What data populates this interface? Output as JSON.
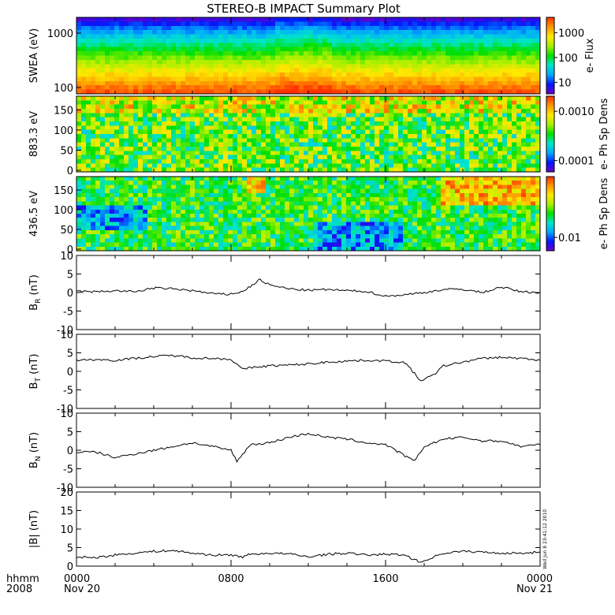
{
  "title": "STEREO-B IMPACT Summary Plot",
  "time_axis": {
    "corner_label_1": "hhmm",
    "corner_label_2": "2008",
    "ticks": [
      {
        "hhmm": "0000",
        "date": "Nov 20"
      },
      {
        "hhmm": "0800",
        "date": ""
      },
      {
        "hhmm": "1600",
        "date": ""
      },
      {
        "hhmm": "0000",
        "date": "Nov 21"
      }
    ]
  },
  "stamp": "Wed Jun  8 23:41:12 2010",
  "colors": {
    "colormap": [
      "#6a00c8",
      "#0018ff",
      "#00a8ff",
      "#00e6c8",
      "#00e000",
      "#a8f000",
      "#ffe800",
      "#ff9600",
      "#ff3000"
    ]
  },
  "chart_data": [
    {
      "type": "heatmap",
      "ylabel": "SWEA (eV)",
      "y_scale": "log",
      "y_ticks": [
        "1000",
        "100"
      ],
      "colorbar_label": "e- Flux",
      "colorbar_ticks": [
        "1000",
        "100",
        "10"
      ],
      "colorbar_scale": "log"
    },
    {
      "type": "heatmap",
      "ylabel": "883.3 eV",
      "ylim": [
        0,
        180
      ],
      "y_ticks": [
        "150",
        "100",
        "50",
        "0"
      ],
      "colorbar_label": "e- Ph Sp Dens",
      "colorbar_ticks": [
        "0.0010",
        "0.0001"
      ],
      "colorbar_scale": "log"
    },
    {
      "type": "heatmap",
      "ylabel": "436.5 eV",
      "ylim": [
        0,
        180
      ],
      "y_ticks": [
        "150",
        "100",
        "50",
        "0"
      ],
      "colorbar_label": "e- Ph Sp Dens",
      "colorbar_ticks": [
        "0.01"
      ],
      "colorbar_scale": "log"
    },
    {
      "type": "line",
      "ylabel_main": "B",
      "ylabel_sub": "R",
      "ylabel_unit": "(nT)",
      "ylim": [
        -10,
        10
      ],
      "y_ticks": [
        "10",
        "5",
        "0",
        "-5",
        "-10"
      ],
      "x_hours": [
        0,
        1,
        2,
        3,
        4,
        5,
        6,
        7,
        7.8,
        8.6,
        9.5,
        10,
        11,
        12,
        13,
        14,
        15,
        16,
        17,
        18,
        19,
        20,
        21,
        22,
        23,
        24
      ],
      "values": [
        0.3,
        0.2,
        0.5,
        0.2,
        1.2,
        1.0,
        0.5,
        -0.3,
        -0.5,
        0.2,
        3.5,
        2.0,
        1.0,
        0.6,
        0.8,
        0.5,
        0.3,
        -1.0,
        -0.6,
        0.0,
        0.8,
        0.9,
        0.0,
        1.5,
        0.2,
        0.0
      ]
    },
    {
      "type": "line",
      "ylabel_main": "B",
      "ylabel_sub": "T",
      "ylabel_unit": "(nT)",
      "ylim": [
        -10,
        10
      ],
      "y_ticks": [
        "10",
        "5",
        "0",
        "-5",
        "-10"
      ],
      "x_hours": [
        0,
        1,
        2,
        3,
        4,
        5,
        6,
        7,
        8,
        8.6,
        9,
        10,
        11,
        12,
        13,
        14,
        15,
        16,
        17,
        17.8,
        18.5,
        19,
        20,
        21,
        22,
        23,
        24
      ],
      "values": [
        3.0,
        3.2,
        3.0,
        3.5,
        4.0,
        4.3,
        3.7,
        3.5,
        3.3,
        0.5,
        1.0,
        1.5,
        1.7,
        2.0,
        2.5,
        2.8,
        3.0,
        2.8,
        2.4,
        -2.5,
        -1.0,
        1.5,
        2.5,
        3.5,
        3.8,
        3.5,
        3.0
      ]
    },
    {
      "type": "line",
      "ylabel_main": "B",
      "ylabel_sub": "N",
      "ylabel_unit": "(nT)",
      "ylim": [
        -10,
        10
      ],
      "y_ticks": [
        "10",
        "5",
        "0",
        "-5",
        "-10"
      ],
      "x_hours": [
        0,
        1,
        2,
        3,
        4,
        5,
        6,
        7,
        8,
        8.3,
        9,
        10,
        11,
        12,
        13,
        14,
        15,
        16,
        17,
        17.5,
        18,
        19,
        20,
        21,
        22,
        23,
        24
      ],
      "values": [
        -0.5,
        -0.5,
        -2.0,
        -1.0,
        0.0,
        1.0,
        2.0,
        1.0,
        0.0,
        -3.0,
        1.5,
        2.0,
        3.5,
        4.5,
        3.5,
        3.0,
        2.0,
        1.5,
        -1.5,
        -3.0,
        1.0,
        3.0,
        3.5,
        2.5,
        2.5,
        1.0,
        1.5
      ]
    },
    {
      "type": "line",
      "ylabel_main": "|B|",
      "ylabel_sub": "",
      "ylabel_unit": "(nT)",
      "ylim": [
        0,
        20
      ],
      "y_ticks": [
        "20",
        "15",
        "10",
        "5",
        "0"
      ],
      "x_hours": [
        0,
        1,
        2,
        3,
        4,
        5,
        6,
        7,
        8,
        8.6,
        9,
        10,
        11,
        12,
        13,
        14,
        15,
        16,
        17,
        17.8,
        18.5,
        19,
        20,
        21,
        22,
        23,
        24
      ],
      "values": [
        2.5,
        2.3,
        3.0,
        3.5,
        4.0,
        4.2,
        3.5,
        3.0,
        3.0,
        2.5,
        3.2,
        3.5,
        3.3,
        2.5,
        3.2,
        3.5,
        3.0,
        3.2,
        3.0,
        1.0,
        2.5,
        3.5,
        4.0,
        3.8,
        3.5,
        3.5,
        3.8
      ]
    }
  ]
}
